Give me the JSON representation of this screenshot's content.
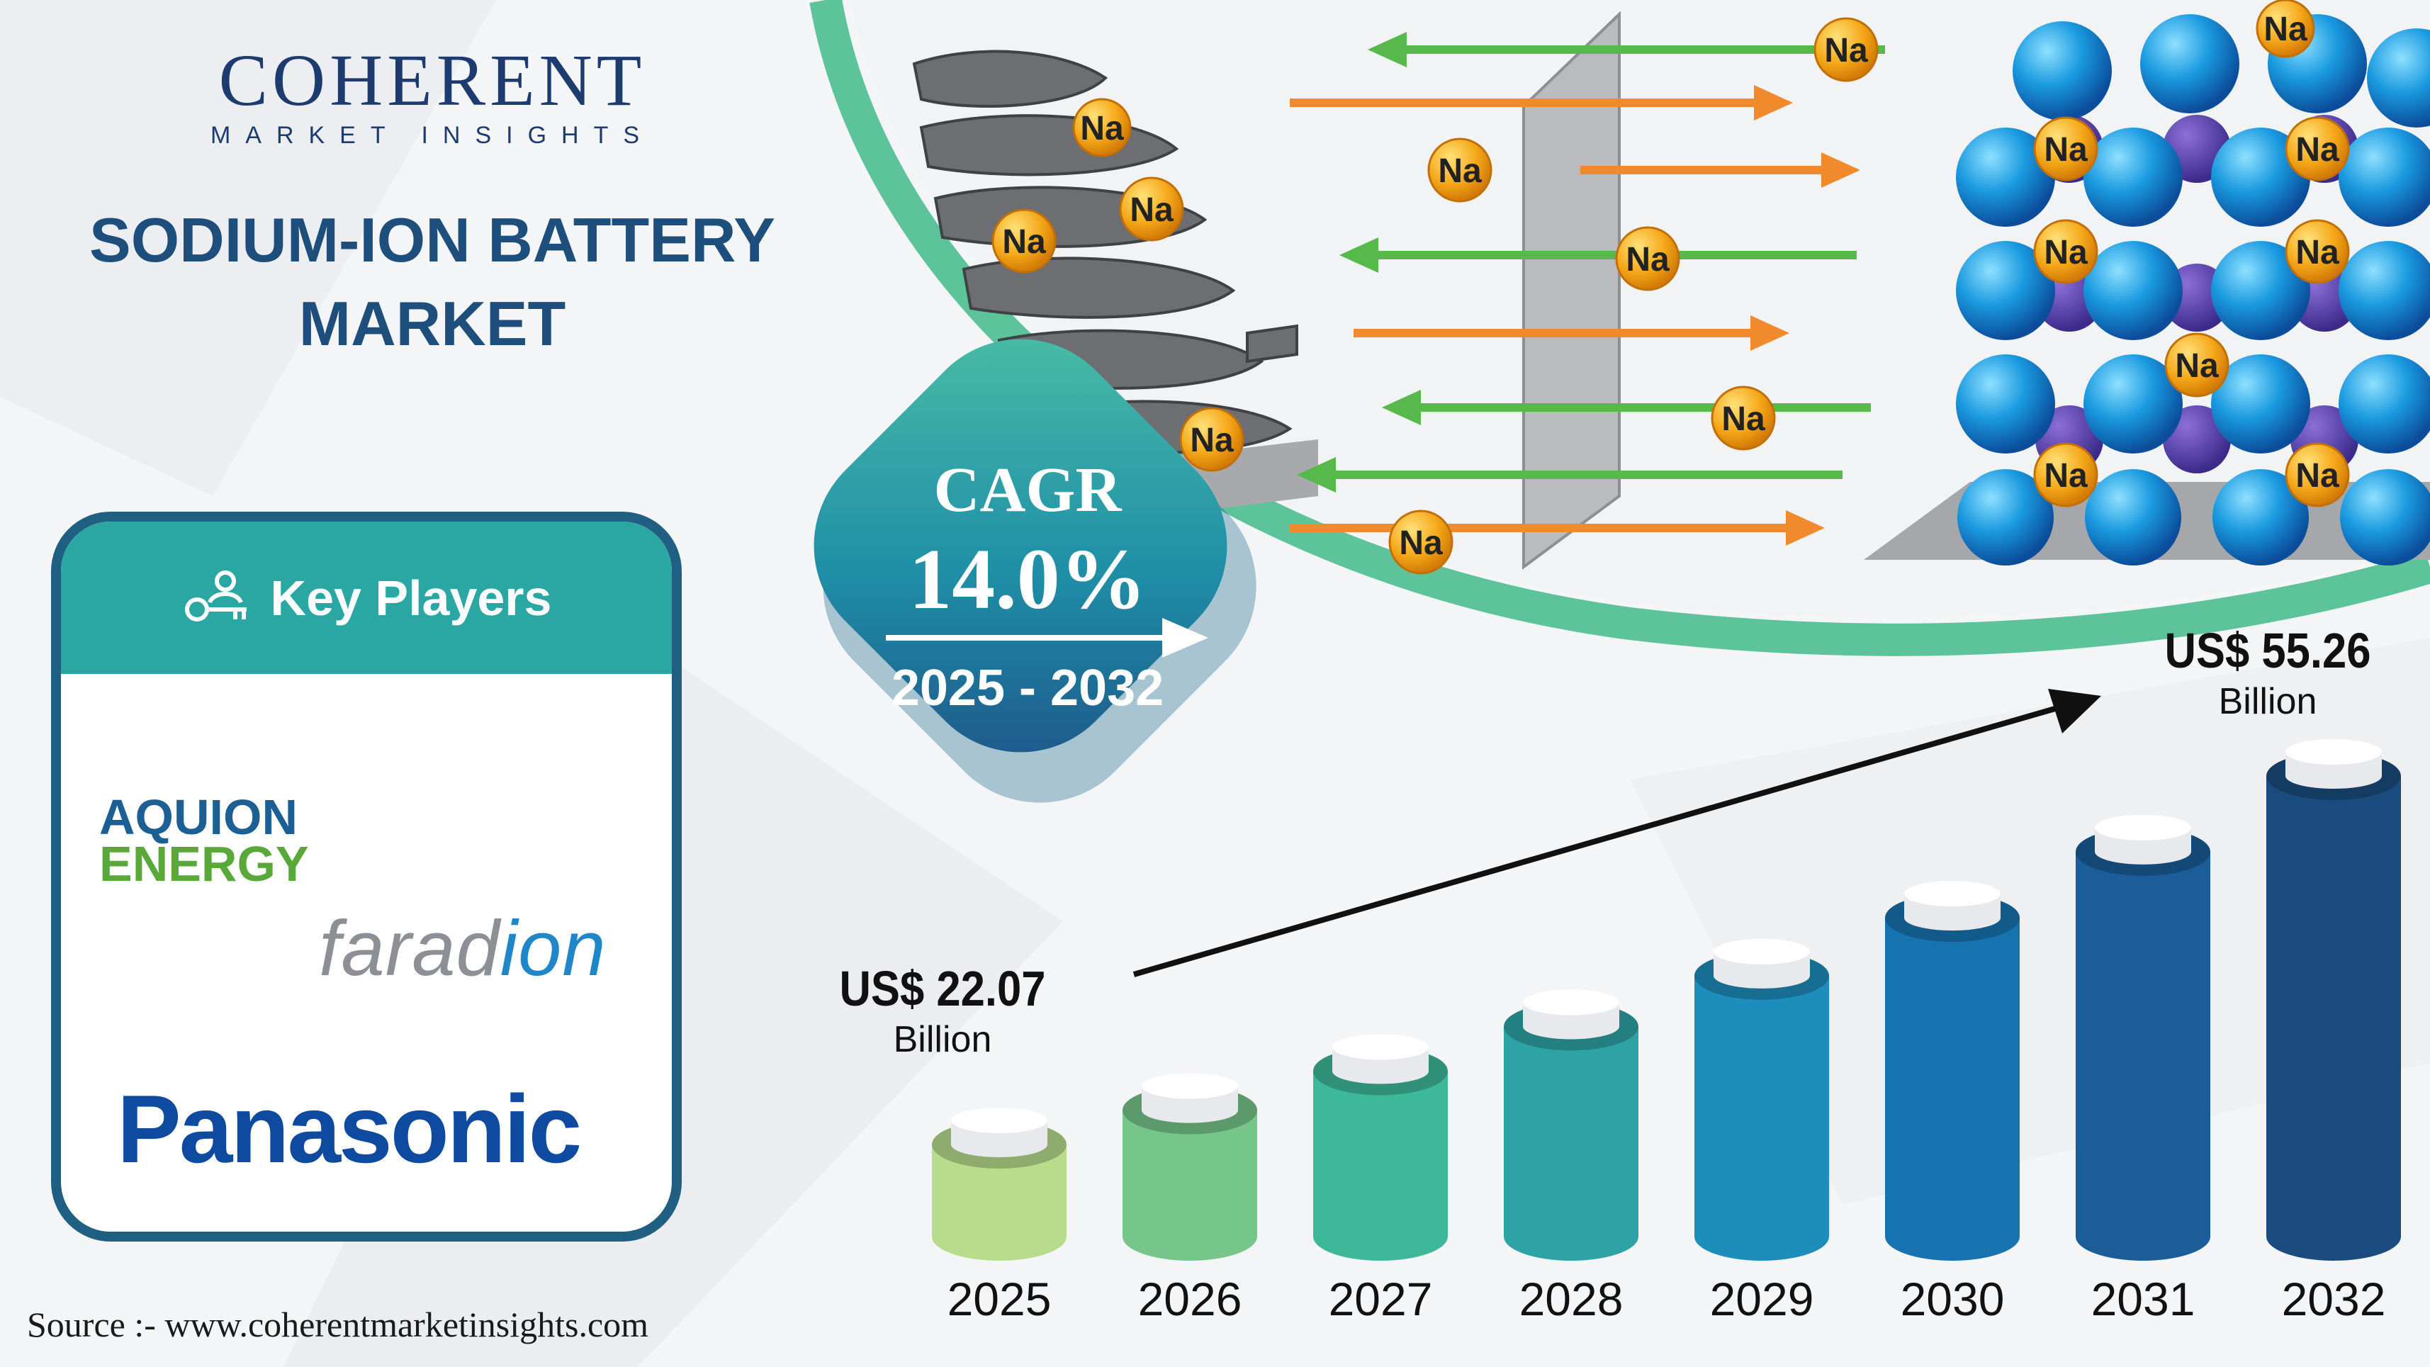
{
  "brand": {
    "name": "COHERENT",
    "tagline": "MARKET INSIGHTS"
  },
  "title": {
    "line1": "SODIUM-ION BATTERY",
    "line2": "MARKET"
  },
  "key_players": {
    "heading": "Key Players",
    "companies": [
      {
        "line1": "AQUION",
        "line2": "ENERGY"
      },
      {
        "name_part1": "farad",
        "name_part2": "ion"
      },
      {
        "name": "Panasonic"
      }
    ]
  },
  "cagr": {
    "label": "CAGR",
    "value": "14.0%",
    "period": "2025 - 2032"
  },
  "ion_label": "Na",
  "chart_data": {
    "type": "bar",
    "categories": [
      "2025",
      "2026",
      "2027",
      "2028",
      "2029",
      "2030",
      "2031",
      "2032"
    ],
    "values": [
      22.07,
      25.16,
      28.68,
      32.7,
      37.27,
      42.49,
      48.44,
      55.26
    ],
    "start_label": {
      "value": "US$ 22.07",
      "unit": "Billion"
    },
    "end_label": {
      "value": "US$ 55.26",
      "unit": "Billion"
    },
    "colors": [
      "#b6dc8c",
      "#76c58b",
      "#3db99a",
      "#2ea3a6",
      "#1d8dbb",
      "#1773b0",
      "#1a5d98",
      "#1a4b7e"
    ]
  },
  "source": "Source :- www.coherentmarketinsights.com"
}
